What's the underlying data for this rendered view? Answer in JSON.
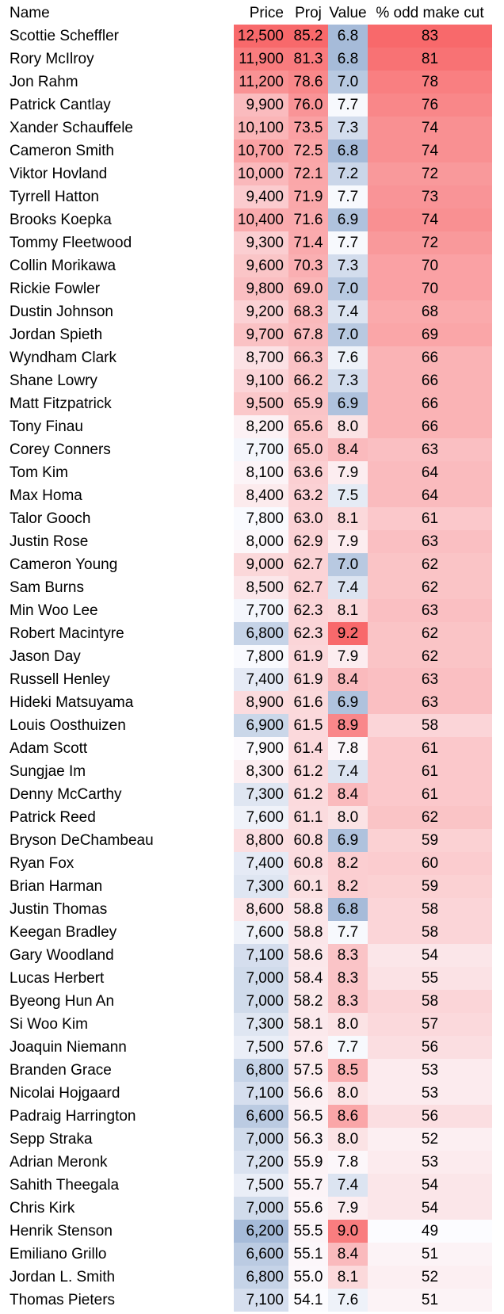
{
  "headers": {
    "name": "Name",
    "price": "Price",
    "proj": "Proj",
    "value": "Value",
    "cut": "% odd make cut"
  },
  "colors": {
    "red": "#f8696b",
    "white": "#fcfcff",
    "blue": "#a6bbd9"
  },
  "rows": [
    {
      "name": "Scottie Scheffler",
      "price": "12,500",
      "proj": "85.2",
      "value": "6.8",
      "cut": "83"
    },
    {
      "name": "Rory McIlroy",
      "price": "11,900",
      "proj": "81.3",
      "value": "6.8",
      "cut": "81"
    },
    {
      "name": "Jon Rahm",
      "price": "11,200",
      "proj": "78.6",
      "value": "7.0",
      "cut": "78"
    },
    {
      "name": "Patrick Cantlay",
      "price": "9,900",
      "proj": "76.0",
      "value": "7.7",
      "cut": "76"
    },
    {
      "name": "Xander Schauffele",
      "price": "10,100",
      "proj": "73.5",
      "value": "7.3",
      "cut": "74"
    },
    {
      "name": "Cameron Smith",
      "price": "10,700",
      "proj": "72.5",
      "value": "6.8",
      "cut": "74"
    },
    {
      "name": "Viktor Hovland",
      "price": "10,000",
      "proj": "72.1",
      "value": "7.2",
      "cut": "72"
    },
    {
      "name": "Tyrrell Hatton",
      "price": "9,400",
      "proj": "71.9",
      "value": "7.7",
      "cut": "73"
    },
    {
      "name": "Brooks Koepka",
      "price": "10,400",
      "proj": "71.6",
      "value": "6.9",
      "cut": "74"
    },
    {
      "name": "Tommy Fleetwood",
      "price": "9,300",
      "proj": "71.4",
      "value": "7.7",
      "cut": "72"
    },
    {
      "name": "Collin Morikawa",
      "price": "9,600",
      "proj": "70.3",
      "value": "7.3",
      "cut": "70"
    },
    {
      "name": "Rickie Fowler",
      "price": "9,800",
      "proj": "69.0",
      "value": "7.0",
      "cut": "70"
    },
    {
      "name": "Dustin Johnson",
      "price": "9,200",
      "proj": "68.3",
      "value": "7.4",
      "cut": "68"
    },
    {
      "name": "Jordan Spieth",
      "price": "9,700",
      "proj": "67.8",
      "value": "7.0",
      "cut": "69"
    },
    {
      "name": "Wyndham Clark",
      "price": "8,700",
      "proj": "66.3",
      "value": "7.6",
      "cut": "66"
    },
    {
      "name": "Shane Lowry",
      "price": "9,100",
      "proj": "66.2",
      "value": "7.3",
      "cut": "66"
    },
    {
      "name": "Matt Fitzpatrick",
      "price": "9,500",
      "proj": "65.9",
      "value": "6.9",
      "cut": "66"
    },
    {
      "name": "Tony Finau",
      "price": "8,200",
      "proj": "65.6",
      "value": "8.0",
      "cut": "66"
    },
    {
      "name": "Corey Conners",
      "price": "7,700",
      "proj": "65.0",
      "value": "8.4",
      "cut": "63"
    },
    {
      "name": "Tom Kim",
      "price": "8,100",
      "proj": "63.6",
      "value": "7.9",
      "cut": "64"
    },
    {
      "name": "Max Homa",
      "price": "8,400",
      "proj": "63.2",
      "value": "7.5",
      "cut": "64"
    },
    {
      "name": "Talor Gooch",
      "price": "7,800",
      "proj": "63.0",
      "value": "8.1",
      "cut": "61"
    },
    {
      "name": "Justin Rose",
      "price": "8,000",
      "proj": "62.9",
      "value": "7.9",
      "cut": "63"
    },
    {
      "name": "Cameron Young",
      "price": "9,000",
      "proj": "62.7",
      "value": "7.0",
      "cut": "62"
    },
    {
      "name": "Sam Burns",
      "price": "8,500",
      "proj": "62.7",
      "value": "7.4",
      "cut": "62"
    },
    {
      "name": "Min Woo Lee",
      "price": "7,700",
      "proj": "62.3",
      "value": "8.1",
      "cut": "63"
    },
    {
      "name": "Robert Macintyre",
      "price": "6,800",
      "proj": "62.3",
      "value": "9.2",
      "cut": "62"
    },
    {
      "name": "Jason Day",
      "price": "7,800",
      "proj": "61.9",
      "value": "7.9",
      "cut": "62"
    },
    {
      "name": "Russell Henley",
      "price": "7,400",
      "proj": "61.9",
      "value": "8.4",
      "cut": "63"
    },
    {
      "name": "Hideki Matsuyama",
      "price": "8,900",
      "proj": "61.6",
      "value": "6.9",
      "cut": "63"
    },
    {
      "name": "Louis Oosthuizen",
      "price": "6,900",
      "proj": "61.5",
      "value": "8.9",
      "cut": "58"
    },
    {
      "name": "Adam Scott",
      "price": "7,900",
      "proj": "61.4",
      "value": "7.8",
      "cut": "61"
    },
    {
      "name": "Sungjae Im",
      "price": "8,300",
      "proj": "61.2",
      "value": "7.4",
      "cut": "61"
    },
    {
      "name": "Denny McCarthy",
      "price": "7,300",
      "proj": "61.2",
      "value": "8.4",
      "cut": "61"
    },
    {
      "name": "Patrick Reed",
      "price": "7,600",
      "proj": "61.1",
      "value": "8.0",
      "cut": "62"
    },
    {
      "name": "Bryson DeChambeau",
      "price": "8,800",
      "proj": "60.8",
      "value": "6.9",
      "cut": "59"
    },
    {
      "name": "Ryan Fox",
      "price": "7,400",
      "proj": "60.8",
      "value": "8.2",
      "cut": "60"
    },
    {
      "name": "Brian Harman",
      "price": "7,300",
      "proj": "60.1",
      "value": "8.2",
      "cut": "59"
    },
    {
      "name": "Justin Thomas",
      "price": "8,600",
      "proj": "58.8",
      "value": "6.8",
      "cut": "58"
    },
    {
      "name": "Keegan Bradley",
      "price": "7,600",
      "proj": "58.8",
      "value": "7.7",
      "cut": "58"
    },
    {
      "name": "Gary Woodland",
      "price": "7,100",
      "proj": "58.6",
      "value": "8.3",
      "cut": "54"
    },
    {
      "name": "Lucas Herbert",
      "price": "7,000",
      "proj": "58.4",
      "value": "8.3",
      "cut": "55"
    },
    {
      "name": "Byeong Hun An",
      "price": "7,000",
      "proj": "58.2",
      "value": "8.3",
      "cut": "58"
    },
    {
      "name": "Si Woo Kim",
      "price": "7,300",
      "proj": "58.1",
      "value": "8.0",
      "cut": "57"
    },
    {
      "name": "Joaquin Niemann",
      "price": "7,500",
      "proj": "57.6",
      "value": "7.7",
      "cut": "56"
    },
    {
      "name": "Branden Grace",
      "price": "6,800",
      "proj": "57.5",
      "value": "8.5",
      "cut": "53"
    },
    {
      "name": "Nicolai Hojgaard",
      "price": "7,100",
      "proj": "56.6",
      "value": "8.0",
      "cut": "53"
    },
    {
      "name": "Padraig Harrington",
      "price": "6,600",
      "proj": "56.5",
      "value": "8.6",
      "cut": "56"
    },
    {
      "name": "Sepp Straka",
      "price": "7,000",
      "proj": "56.3",
      "value": "8.0",
      "cut": "52"
    },
    {
      "name": "Adrian Meronk",
      "price": "7,200",
      "proj": "55.9",
      "value": "7.8",
      "cut": "53"
    },
    {
      "name": "Sahith Theegala",
      "price": "7,500",
      "proj": "55.7",
      "value": "7.4",
      "cut": "54"
    },
    {
      "name": "Chris Kirk",
      "price": "7,000",
      "proj": "55.6",
      "value": "7.9",
      "cut": "54"
    },
    {
      "name": "Henrik Stenson",
      "price": "6,200",
      "proj": "55.5",
      "value": "9.0",
      "cut": "49"
    },
    {
      "name": "Emiliano Grillo",
      "price": "6,600",
      "proj": "55.1",
      "value": "8.4",
      "cut": "51"
    },
    {
      "name": "Jordan L. Smith",
      "price": "6,800",
      "proj": "55.0",
      "value": "8.1",
      "cut": "52"
    },
    {
      "name": "Thomas Pieters",
      "price": "7,100",
      "proj": "54.1",
      "value": "7.6",
      "cut": "51"
    }
  ]
}
